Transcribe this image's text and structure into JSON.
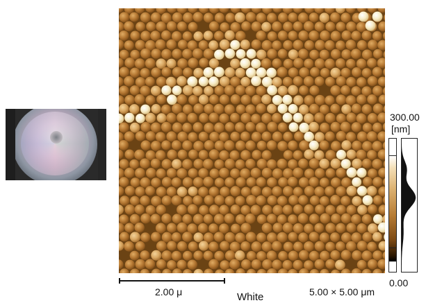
{
  "scan": {
    "scale_bar_label": "2.00 μ",
    "channel": "White",
    "scan_size": "5.00 × 5.00 μm",
    "palette": {
      "background": "#6b4314",
      "particle_mid": "#b57833",
      "particle_light": "#d9a762",
      "particle_bright": "#f7ecc7"
    }
  },
  "color_scale": {
    "max": "300.00",
    "unit": "[nm]",
    "min": "0.00"
  }
}
